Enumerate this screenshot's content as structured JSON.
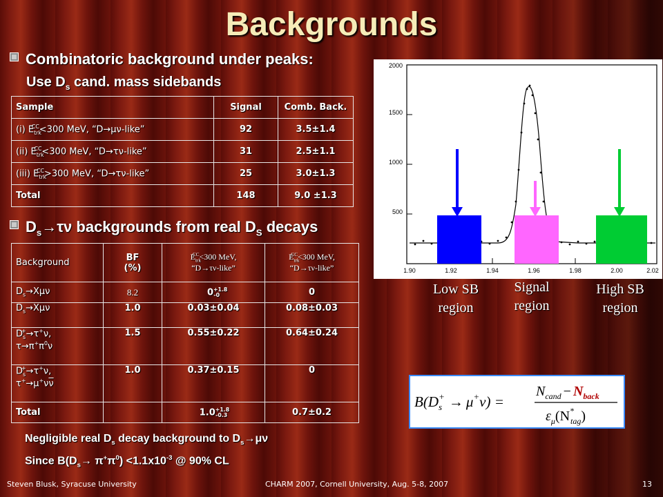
{
  "title": "Backgrounds",
  "bullet1": {
    "line1": "Combinatoric background under peaks:",
    "line2_pre": "Use D",
    "line2_sub": "s",
    "line2_post": " cand. mass sidebands"
  },
  "table1": {
    "headers": [
      "Sample",
      "Signal",
      "Comb. Back."
    ],
    "rows": [
      {
        "a": "(i) E",
        "sub": "trk",
        "sup": "CC",
        "b": "<300 MeV, “D",
        "arrow": "→",
        "c": "μν-like”",
        "signal": "92",
        "comb": "3.5±1.4"
      },
      {
        "a": "(ii) E",
        "sub": "trk",
        "sup": "CC",
        "b": "<300 MeV, “D",
        "arrow": "→",
        "c": "τν-like”",
        "signal": "31",
        "comb": "2.5±1.1"
      },
      {
        "a": "(iii) E",
        "sub": "trk",
        "sup": "CC",
        "b": ">300 MeV, “D",
        "arrow": "→",
        "c": "τν-like”",
        "signal": "25",
        "comb": "3.0±1.3"
      }
    ],
    "total": {
      "label": "Total",
      "signal": "148",
      "comb": "9.0 ±1.3"
    }
  },
  "bullet2": {
    "pre": "D",
    "sub": "s",
    "arrow": "→",
    "mid": "τν backgrounds from real D",
    "sub2": "S",
    "post": " decays"
  },
  "table2": {
    "h_background": "Background",
    "h_bf_line1": "BF",
    "h_bf_line2": "(%)",
    "h_col3": {
      "a": "E",
      "sub": "trk",
      "sup": "CC",
      "b": "<300 MeV,",
      "c": "“D",
      "arrow": "→",
      "d": "τν-like”"
    },
    "h_col4": {
      "a": "E",
      "sub": "trk",
      "sup": "CC",
      "b": "<300 MeV,",
      "c": "“D",
      "arrow": "→",
      "d": "τν-like”"
    },
    "r1": {
      "bg_a": "D",
      "bg_sub": "s",
      "bg_arrow": "→",
      "bg_b": "Xμν",
      "bf": "8.2",
      "v3_base": "0",
      "v3_sup": "+1.8",
      "v3_sub": "-0",
      "v4": "0"
    },
    "r2": {
      "bg_a": "D",
      "bg_sub": "s",
      "bg_arrow": "→",
      "bg_b": "Xμν",
      "bf": "1.0",
      "v3": "0.03±0.04",
      "v4": "0.08±0.03"
    },
    "r3": {
      "l1_a": "D",
      "l1_sub": "s",
      "l1_sup": "+",
      "l1_arrow": "→",
      "l1_b": "τ",
      "l1_sup2": "+",
      "l1_c": "ν,",
      "l2_a": "τ",
      "l2_arrow": "→",
      "l2_b": "π",
      "l2_sup": "+",
      "l2_c": "π",
      "l2_sup2": "0",
      "l2_d": "ν",
      "bf": "1.5",
      "v3": "0.55±0.22",
      "v4": "0.64±0.24"
    },
    "r4": {
      "l1_a": "D",
      "l1_sub": "s",
      "l1_sup": "+",
      "l1_arrow": "→",
      "l1_b": "τ",
      "l1_sup2": "+",
      "l1_c": "ν,",
      "l2_a": "τ",
      "l2_sup": "+",
      "l2_arrow": "→",
      "l2_b": "μ",
      "l2_sup2": "+",
      "l2_c": "ν",
      "l2_d": "ν",
      "bf": "1.0",
      "v3": "0.37±0.15",
      "v4": "0"
    },
    "total": {
      "label": "Total",
      "v3_base": "1.0",
      "v3_sup": "+1.8",
      "v3_sub": "-0.3",
      "v4": "0.7±0.2"
    }
  },
  "plot": {
    "y_ticks": [
      "2000",
      "1500",
      "1000",
      "500"
    ],
    "x_ticks": [
      "1.90",
      "1.92",
      "1.94",
      "1.96",
      "1.98",
      "2.00",
      "2.02"
    ],
    "colors": {
      "low": "#0000ff",
      "signal": "#ff66ff",
      "high": "#00cc33"
    }
  },
  "regions": {
    "low": {
      "line1": "Low SB",
      "line2": "region"
    },
    "signal": {
      "line1": "Signal",
      "line2": "region"
    },
    "high": {
      "line1": "High SB",
      "line2": "region"
    }
  },
  "formula": {
    "lhs_a": "B(D",
    "lhs_sub": "s",
    "lhs_sup": "+",
    "lhs_arrow": "→",
    "lhs_b": "μ",
    "lhs_sup2": "+",
    "lhs_c": "ν) =",
    "num_a": "N",
    "num_a_sub": "cand",
    "num_minus": "−",
    "num_b": "N",
    "num_b_sub": "back",
    "den_a": "ε",
    "den_a_sub": "μ",
    "den_b": "(N",
    "den_b_sup": "*",
    "den_b_sub": "tag",
    "den_c": ")"
  },
  "notes": {
    "l1_a": "Negligible real D",
    "l1_sub": "s",
    "l1_b": " decay background to D",
    "l1_sub2": "s",
    "l1_arrow": "→",
    "l1_c": "μν",
    "l2_a": "Since B(D",
    "l2_sub": "s",
    "l2_arrow": "→",
    "l2_b": " π",
    "l2_sup": "+",
    "l2_c": "π",
    "l2_sup2": "0",
    "l2_d": ") <1.1x10",
    "l2_sup3": "-3",
    "l2_e": " @ 90% CL"
  },
  "footer": {
    "left": "Steven Blusk, Syracuse University",
    "center": "CHARM 2007, Cornell University, Aug. 5-8, 2007",
    "right": "13"
  }
}
